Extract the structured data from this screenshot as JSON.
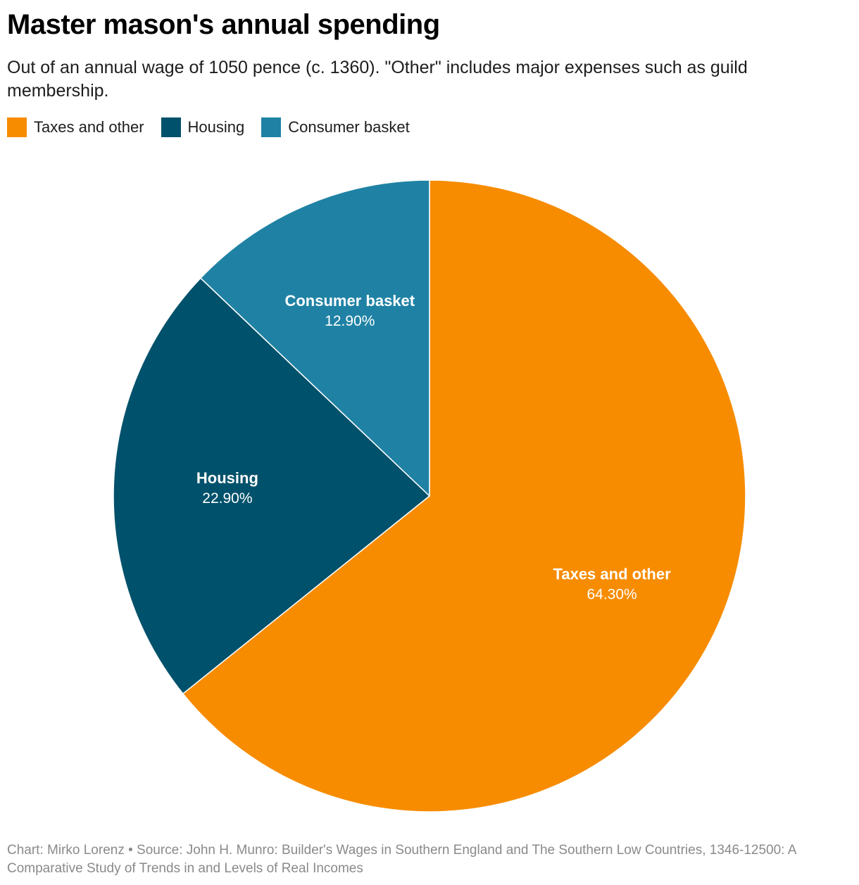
{
  "header": {
    "title": "Master mason's annual spending",
    "subtitle": "Out of an annual wage of 1050 pence (c. 1360). \"Other\" includes major expenses such as guild membership."
  },
  "legend": {
    "items": [
      {
        "label": "Taxes and other",
        "color": "#f78c00"
      },
      {
        "label": "Housing",
        "color": "#00516b"
      },
      {
        "label": "Consumer basket",
        "color": "#1f82a4"
      }
    ]
  },
  "chart_data": {
    "type": "pie",
    "title": "Master mason's annual spending",
    "subtitle": "Out of an annual wage of 1050 pence (c. 1360). \"Other\" includes major expenses such as guild membership.",
    "legend_position": "top-left",
    "slices": [
      {
        "name": "Taxes and other",
        "value": 64.3,
        "display": "64.30%",
        "color": "#f78c00"
      },
      {
        "name": "Housing",
        "value": 22.9,
        "display": "22.90%",
        "color": "#00516b"
      },
      {
        "name": "Consumer basket",
        "value": 12.9,
        "display": "12.90%",
        "color": "#1f82a4"
      }
    ]
  },
  "footer": {
    "text": "Chart: Mirko Lorenz • Source: John H. Munro: Builder's Wages in Southern England and The Southern Low Countries, 1346-12500: A Comparative Study of Trends in and Levels of Real Incomes"
  }
}
